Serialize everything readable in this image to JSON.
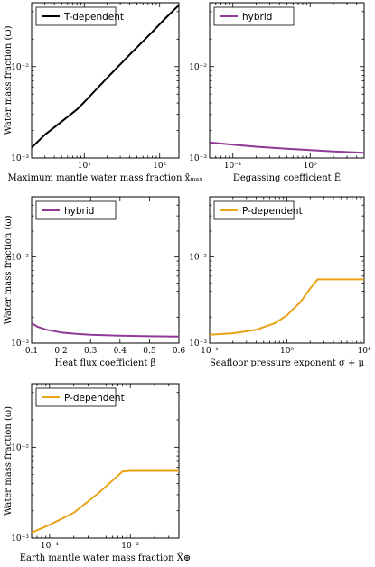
{
  "chart_data": [
    {
      "type": "line",
      "xscale": "log",
      "yscale": "log",
      "xlim": [
        2,
        180
      ],
      "ylim": [
        0.001,
        0.05
      ],
      "xticks": [
        {
          "v": 10,
          "label": "10¹"
        },
        {
          "v": 100,
          "label": "10²"
        }
      ],
      "yticks": [
        {
          "v": 0.001,
          "label": "10⁻³"
        },
        {
          "v": 0.01,
          "label": "10⁻²"
        }
      ],
      "ylabel": "Water mass fraction (ω)",
      "xlabel": "Maximum mantle water mass fraction  x̃ₘₐₓ",
      "series": [
        {
          "name": "T-dependent",
          "color": "#000000",
          "x": [
            2,
            3,
            5,
            8,
            10,
            20,
            40,
            80,
            120,
            180
          ],
          "y": [
            0.0013,
            0.0018,
            0.0025,
            0.0034,
            0.0041,
            0.0075,
            0.0135,
            0.024,
            0.034,
            0.047
          ]
        }
      ]
    },
    {
      "type": "line",
      "xscale": "log",
      "yscale": "log",
      "xlim": [
        0.05,
        5
      ],
      "ylim": [
        0.001,
        0.05
      ],
      "xticks": [
        {
          "v": 0.1,
          "label": "10⁻¹"
        },
        {
          "v": 1,
          "label": "10⁰"
        }
      ],
      "yticks": [
        {
          "v": 0.001,
          "label": "10⁻³"
        },
        {
          "v": 0.01,
          "label": "10⁻²"
        }
      ],
      "ylabel": "",
      "xlabel": "Degassing coefficient  Ẽ",
      "series": [
        {
          "name": "hybrid",
          "color": "#8e3a96",
          "x": [
            0.05,
            0.1,
            0.2,
            0.5,
            1,
            2,
            5
          ],
          "y": [
            0.00148,
            0.0014,
            0.00133,
            0.00126,
            0.00122,
            0.00118,
            0.00114
          ]
        }
      ]
    },
    {
      "type": "line",
      "xscale": "linear",
      "yscale": "log",
      "xlim": [
        0.1,
        0.6
      ],
      "ylim": [
        0.001,
        0.05
      ],
      "xticks": [
        {
          "v": 0.1,
          "label": "0.1"
        },
        {
          "v": 0.2,
          "label": "0.2"
        },
        {
          "v": 0.3,
          "label": "0.3"
        },
        {
          "v": 0.4,
          "label": "0.4"
        },
        {
          "v": 0.5,
          "label": "0.5"
        },
        {
          "v": 0.6,
          "label": "0.6"
        }
      ],
      "yticks": [
        {
          "v": 0.001,
          "label": "10⁻³"
        },
        {
          "v": 0.01,
          "label": "10⁻²"
        }
      ],
      "ylabel": "Water mass fraction (ω)",
      "xlabel": "Heat flux coefficient β",
      "series": [
        {
          "name": "hybrid",
          "color": "#8e3a96",
          "x": [
            0.1,
            0.12,
            0.15,
            0.2,
            0.25,
            0.3,
            0.4,
            0.5,
            0.6
          ],
          "y": [
            0.0017,
            0.00155,
            0.00143,
            0.00133,
            0.00128,
            0.00125,
            0.00122,
            0.0012,
            0.00119
          ]
        }
      ]
    },
    {
      "type": "line",
      "xscale": "log",
      "yscale": "log",
      "xlim": [
        0.1,
        10
      ],
      "ylim": [
        0.001,
        0.05
      ],
      "xticks": [
        {
          "v": 0.1,
          "label": "10⁻¹"
        },
        {
          "v": 1,
          "label": "10⁰"
        },
        {
          "v": 10,
          "label": "10¹"
        }
      ],
      "yticks": [
        {
          "v": 0.001,
          "label": "10⁻³"
        },
        {
          "v": 0.01,
          "label": "10⁻²"
        }
      ],
      "ylabel": "",
      "xlabel": "Seafloor pressure exponent  σ + μ",
      "series": [
        {
          "name": "P-dependent",
          "color": "#e8a317",
          "x": [
            0.1,
            0.2,
            0.4,
            0.7,
            1,
            1.5,
            2,
            2.5,
            5,
            10
          ],
          "y": [
            0.00125,
            0.0013,
            0.00143,
            0.0017,
            0.0021,
            0.003,
            0.0043,
            0.0055,
            0.0055,
            0.0055
          ]
        }
      ]
    },
    {
      "type": "line",
      "xscale": "log",
      "yscale": "log",
      "xlim": [
        6e-05,
        0.004
      ],
      "ylim": [
        0.001,
        0.05
      ],
      "xticks": [
        {
          "v": 0.0001,
          "label": "10⁻⁴"
        },
        {
          "v": 0.001,
          "label": "10⁻³"
        }
      ],
      "yticks": [
        {
          "v": 0.001,
          "label": "10⁻³"
        },
        {
          "v": 0.01,
          "label": "10⁻²"
        }
      ],
      "ylabel": "Water mass fraction (ω)",
      "xlabel": "Earth mantle water mass fraction  X̃⊕",
      "series": [
        {
          "name": "P-dependent",
          "color": "#e8a317",
          "x": [
            6e-05,
            0.0001,
            0.0002,
            0.0004,
            0.0008,
            0.001,
            0.002,
            0.004
          ],
          "y": [
            0.00115,
            0.0014,
            0.0019,
            0.0031,
            0.0054,
            0.0055,
            0.0055,
            0.0055
          ]
        }
      ]
    }
  ]
}
